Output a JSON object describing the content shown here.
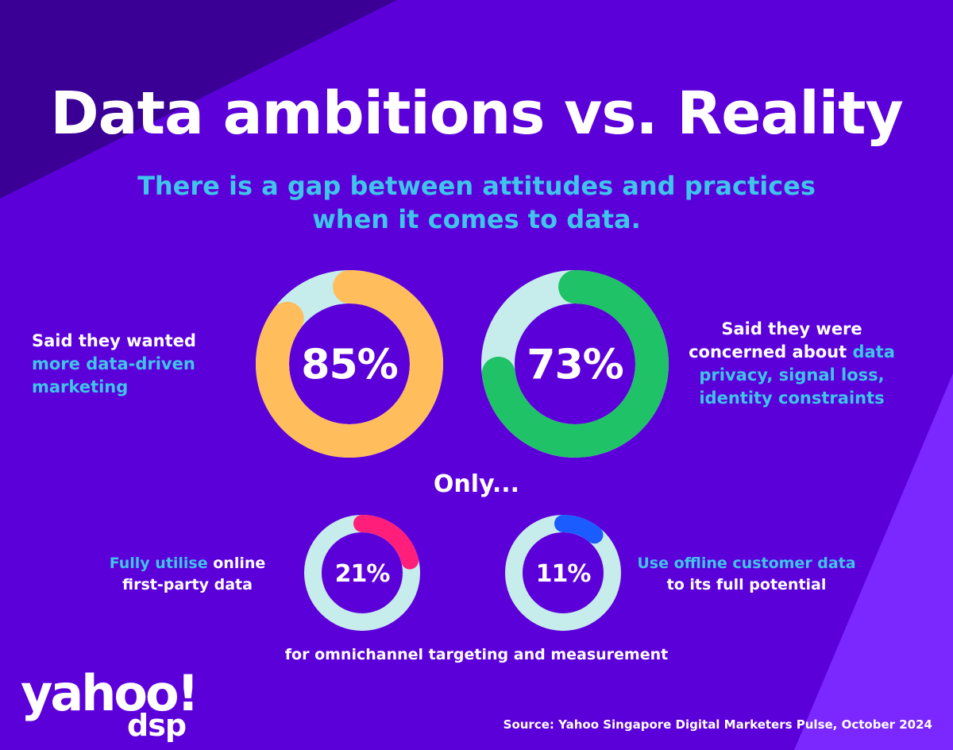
{
  "title": "Data ambitions vs. Reality",
  "subtitle": "There is a gap between attitudes and practices when it comes to data.",
  "colors": {
    "background": "#5c00d9",
    "track": "#c7ecec",
    "orange": "#ffbd5c",
    "green": "#1fc266",
    "pink": "#ff1f7a",
    "blue": "#1a5cff",
    "highlight": "#3fc4ea"
  },
  "only_label": "Only...",
  "footnote": "for omnichannel targeting and measurement",
  "source": "Source: Yahoo Singapore Digital Marketers Pulse, October 2024",
  "logo": {
    "brand": "yahoo!",
    "product": "dsp"
  },
  "labels": {
    "more_driven": {
      "plain": "Said they wanted ",
      "highlight": "more data-driven marketing"
    },
    "concerned": {
      "plain": "Said they were concerned about ",
      "highlight": "data privacy, signal loss, identity constraints"
    },
    "online": {
      "highlight": "Fully utilise",
      "plain": " online first-party data"
    },
    "offline": {
      "highlight": "Use offline customer data",
      "plain": " to its full potential"
    }
  },
  "chart_data": {
    "type": "pie",
    "variant": "donut",
    "series": [
      {
        "label": "85%",
        "value": 85,
        "color": "#ffbd5c"
      },
      {
        "label": "73%",
        "value": 73,
        "color": "#1fc266"
      },
      {
        "label": "21%",
        "value": 21,
        "color": "#ff1f7a"
      },
      {
        "label": "11%",
        "value": 11,
        "color": "#1a5cff"
      }
    ]
  }
}
